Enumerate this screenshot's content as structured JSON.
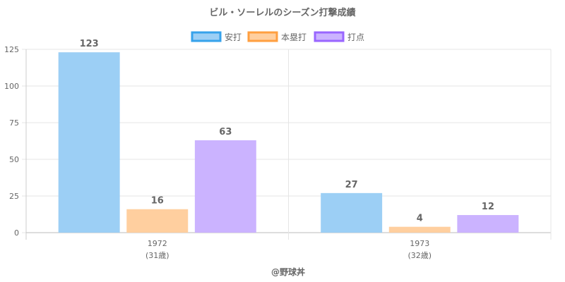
{
  "chart_data": {
    "type": "bar",
    "title": "ビル・ソーレルのシーズン打撃成績",
    "categories": [
      "1972",
      "1973"
    ],
    "category_sublabels": [
      "(31歳)",
      "(32歳)"
    ],
    "series": [
      {
        "name": "安打",
        "values": [
          123,
          27
        ],
        "color": "#9ccff5",
        "border": "#36a2eb"
      },
      {
        "name": "本塁打",
        "values": [
          16,
          4
        ],
        "color": "#ffcf9f",
        "border": "#ff9f40"
      },
      {
        "name": "打点",
        "values": [
          63,
          12
        ],
        "color": "#cbb3ff",
        "border": "#9966ff"
      }
    ],
    "ylim": [
      0,
      125
    ],
    "yticks": [
      0,
      25,
      50,
      75,
      100,
      125
    ],
    "grid": true,
    "legend_position": "top"
  },
  "footer": "@野球丼"
}
